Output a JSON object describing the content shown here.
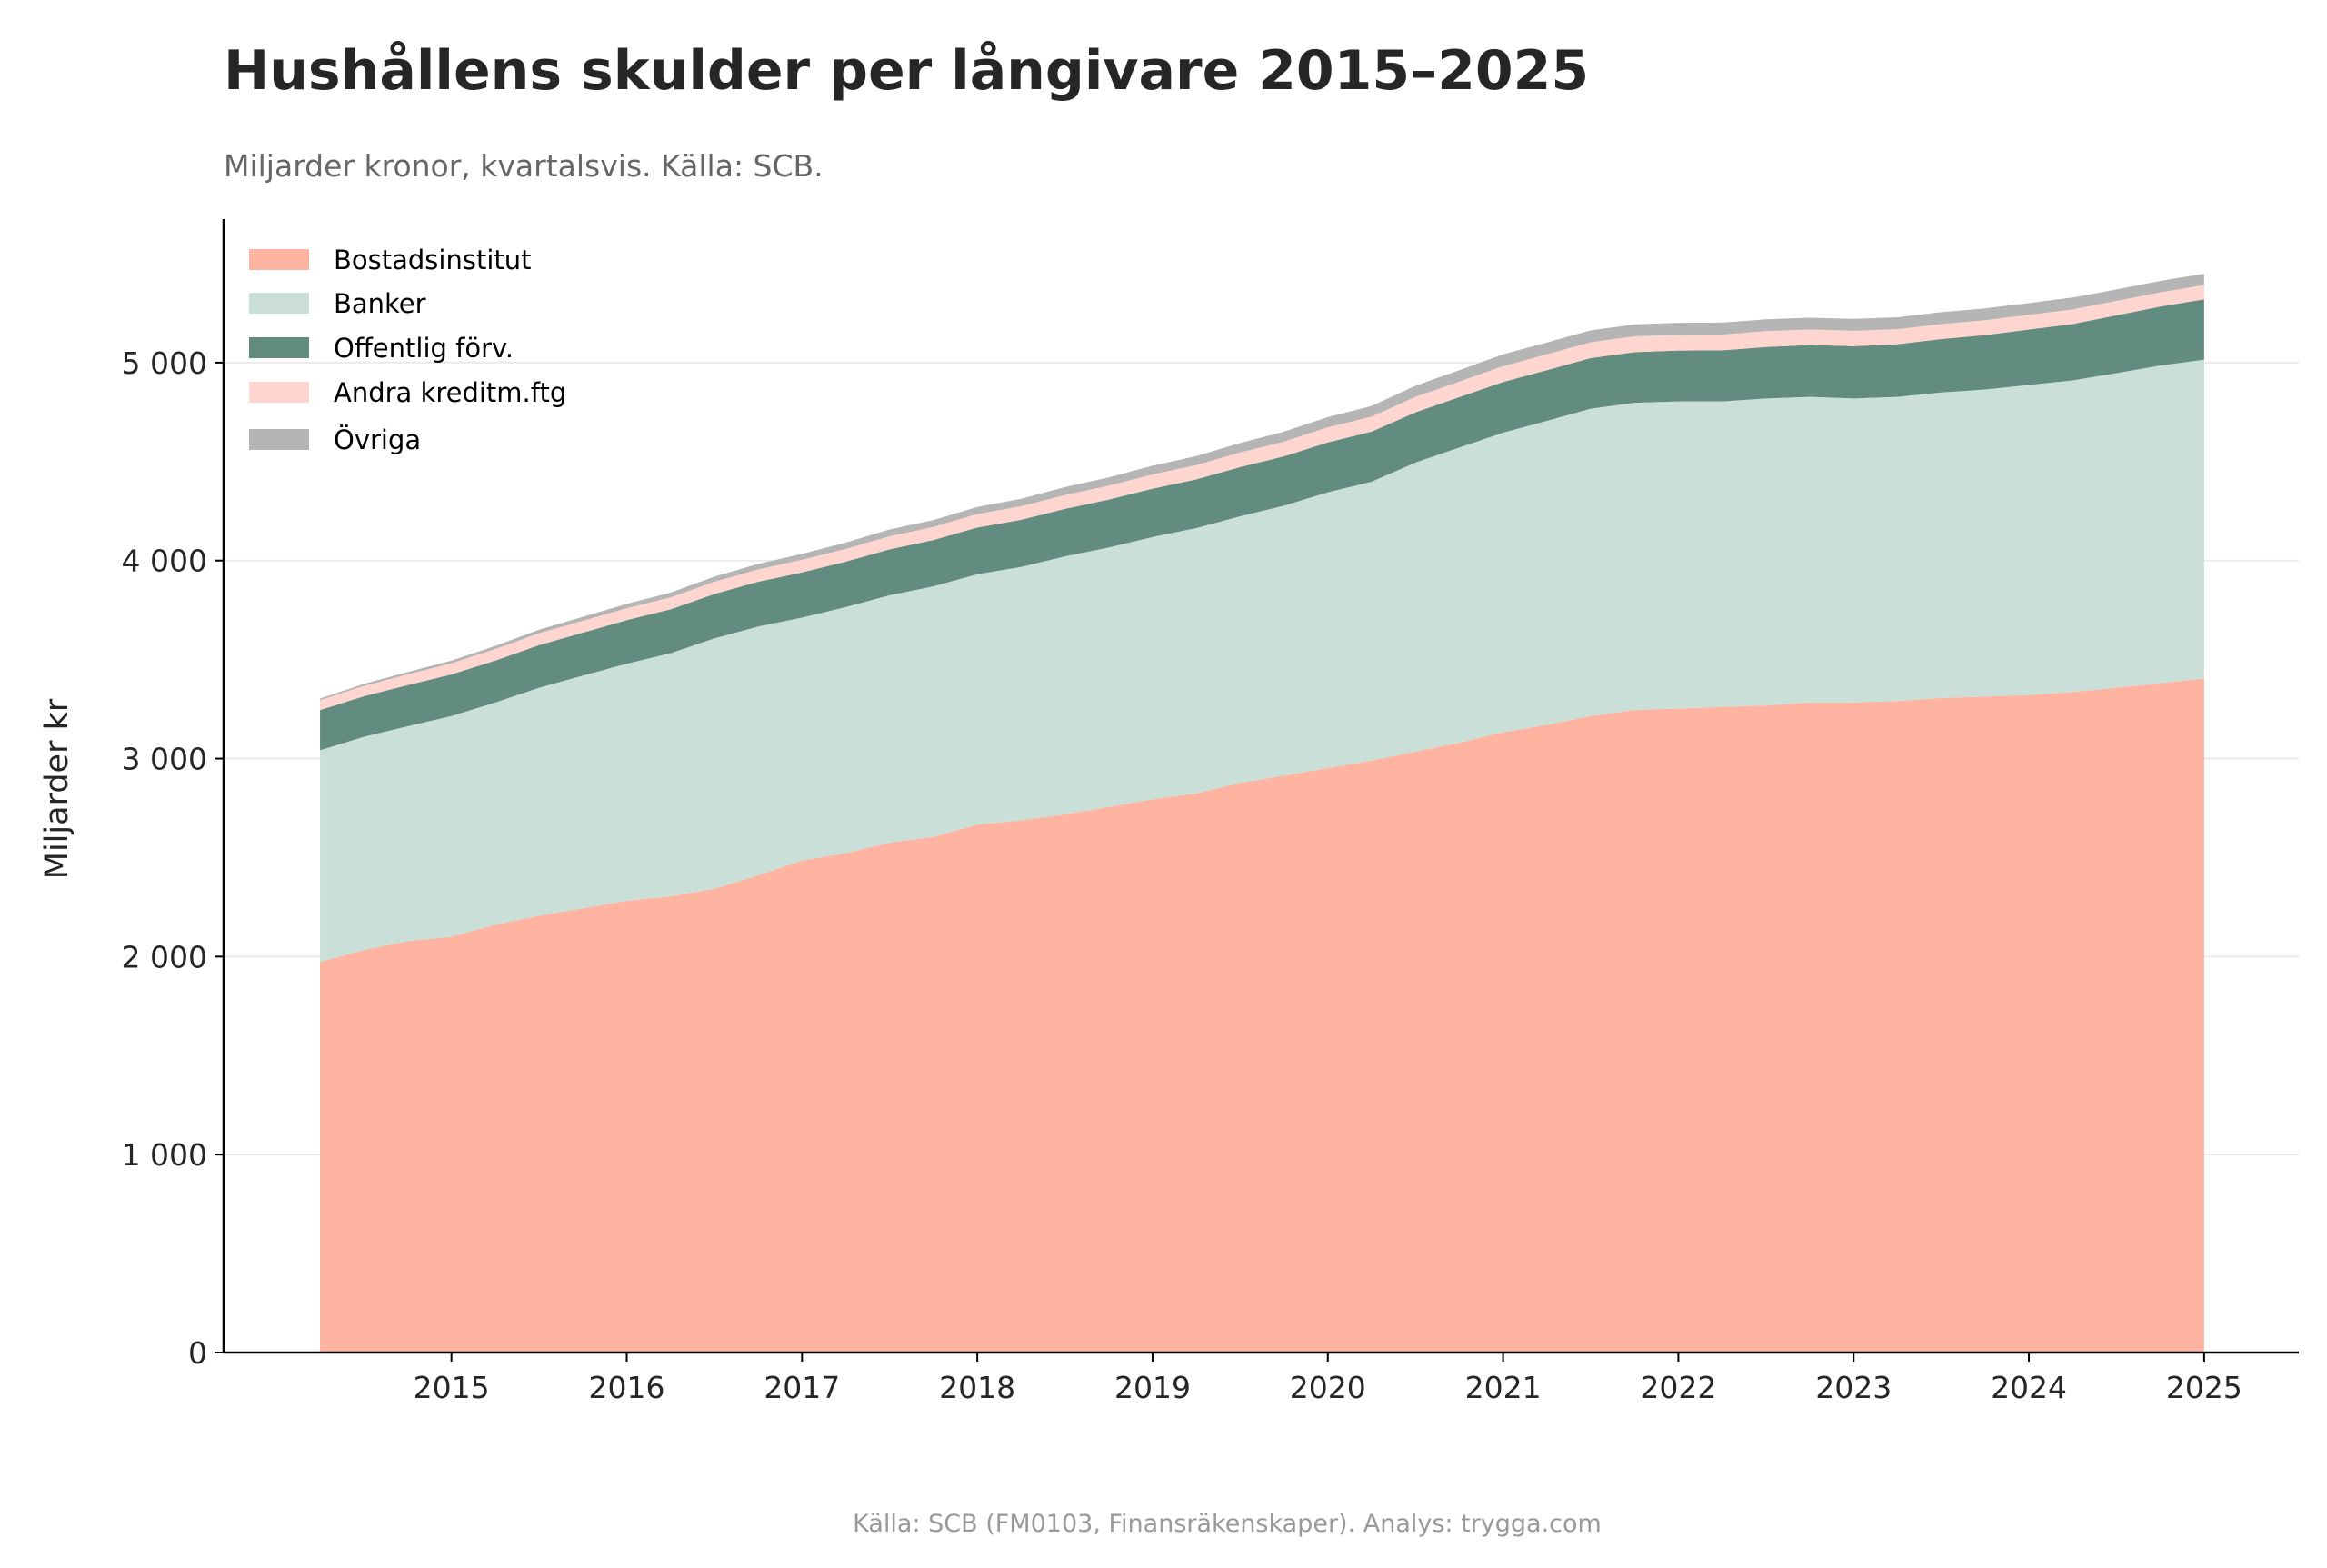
{
  "chart_data": {
    "type": "area",
    "stacked": true,
    "title": "Hushållens skulder per långivare 2015–2025",
    "subtitle": "Miljarder kronor, kvartalsvis. Källa: SCB.",
    "footer": "Källa: SCB (FM0103, Finansräkenskaper). Analys: trygga.com",
    "xlabel": "",
    "ylabel": "Miljarder kr",
    "xlim": [
      2013.7,
      2025.54
    ],
    "ylim": [
      0,
      5725
    ],
    "grid": "horizontal",
    "legend_position": "top-left",
    "x_ticks": [
      "2015",
      "2016",
      "2017",
      "2018",
      "2019",
      "2020",
      "2021",
      "2022",
      "2023",
      "2024",
      "2025"
    ],
    "y_ticks": [
      0,
      1000,
      2000,
      3000,
      4000,
      5000
    ],
    "y_tick_labels": [
      "0",
      "1 000",
      "2 000",
      "3 000",
      "4 000",
      "5 000"
    ],
    "x": [
      "2014Q2",
      "2014Q3",
      "2014Q4",
      "2015Q1",
      "2015Q2",
      "2015Q3",
      "2015Q4",
      "2016Q1",
      "2016Q2",
      "2016Q3",
      "2016Q4",
      "2017Q1",
      "2017Q2",
      "2017Q3",
      "2017Q4",
      "2018Q1",
      "2018Q2",
      "2018Q3",
      "2018Q4",
      "2019Q1",
      "2019Q2",
      "2019Q3",
      "2019Q4",
      "2020Q1",
      "2020Q2",
      "2020Q3",
      "2020Q4",
      "2021Q1",
      "2021Q2",
      "2021Q3",
      "2021Q4",
      "2022Q1",
      "2022Q2",
      "2022Q3",
      "2022Q4",
      "2023Q1",
      "2023Q2",
      "2023Q3",
      "2023Q4",
      "2024Q1",
      "2024Q2",
      "2024Q3",
      "2024Q4",
      "2025Q1"
    ],
    "series": [
      {
        "name": "Bostadsinstitut",
        "color": "#ffb3a1",
        "values": [
          1973,
          2033,
          2078,
          2100,
          2161,
          2206,
          2244,
          2282,
          2304,
          2342,
          2410,
          2485,
          2523,
          2575,
          2605,
          2666,
          2688,
          2718,
          2756,
          2794,
          2824,
          2877,
          2914,
          2952,
          2990,
          3035,
          3080,
          3133,
          3170,
          3215,
          3245,
          3253,
          3261,
          3268,
          3283,
          3283,
          3291,
          3306,
          3313,
          3321,
          3336,
          3358,
          3381,
          3404
        ]
      },
      {
        "name": "Banker",
        "color": "#c9dfd7",
        "values": [
          1069,
          1077,
          1085,
          1115,
          1122,
          1152,
          1175,
          1197,
          1228,
          1265,
          1257,
          1227,
          1242,
          1250,
          1265,
          1265,
          1280,
          1303,
          1310,
          1325,
          1340,
          1347,
          1363,
          1393,
          1408,
          1460,
          1491,
          1513,
          1536,
          1552,
          1552,
          1551,
          1543,
          1551,
          1544,
          1536,
          1536,
          1543,
          1551,
          1566,
          1574,
          1589,
          1604,
          1611
        ]
      },
      {
        "name": "Offentlig förv.",
        "color": "#638c80",
        "values": [
          203,
          205,
          208,
          210,
          212,
          215,
          217,
          220,
          222,
          224,
          226,
          228,
          230,
          232,
          234,
          236,
          238,
          240,
          242,
          244,
          246,
          248,
          250,
          252,
          253,
          254,
          255,
          256,
          256,
          256,
          256,
          257,
          258,
          260,
          262,
          264,
          266,
          270,
          275,
          280,
          285,
          292,
          298,
          305
        ]
      },
      {
        "name": "Andra kreditm.ftg",
        "color": "#ffd6cf",
        "values": [
          50,
          52,
          54,
          56,
          58,
          60,
          60,
          60,
          60,
          62,
          62,
          64,
          64,
          66,
          66,
          68,
          68,
          70,
          70,
          72,
          72,
          74,
          74,
          76,
          76,
          78,
          78,
          80,
          80,
          80,
          80,
          80,
          80,
          80,
          78,
          78,
          76,
          76,
          75,
          74,
          74,
          73,
          72,
          72
        ]
      },
      {
        "name": "Övriga",
        "color": "#b5b5b5",
        "values": [
          8,
          10,
          12,
          14,
          16,
          18,
          20,
          22,
          24,
          26,
          28,
          30,
          32,
          34,
          35,
          36,
          38,
          40,
          42,
          44,
          46,
          48,
          50,
          52,
          54,
          56,
          58,
          60,
          60,
          60,
          60,
          60,
          60,
          60,
          60,
          60,
          60,
          60,
          60,
          60,
          60,
          58,
          58,
          57
        ]
      }
    ]
  }
}
